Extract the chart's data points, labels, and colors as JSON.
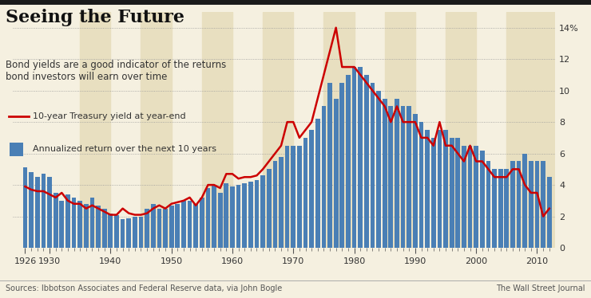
{
  "title": "Seeing the Future",
  "subtitle": "Bond yields are a good indicator of the returns\nbond investors will earn over time",
  "source": "Sources: Ibbotson Associates and Federal Reserve data, via John Bogle",
  "source_right": "The Wall Street Journal",
  "legend_line": "10-year Treasury yield at year-end",
  "legend_bar": "Annualized return over the next 10 years",
  "background_color": "#f5f0e0",
  "bar_color": "#4a7fb5",
  "line_color": "#cc0000",
  "shaded_color": "#e8dfc0",
  "ylim": [
    0,
    15
  ],
  "yticks": [
    0,
    2,
    4,
    6,
    8,
    10,
    12,
    14
  ],
  "ytick_labels": [
    "0",
    "2",
    "4",
    "6",
    "8",
    "10",
    "12",
    "14%"
  ],
  "years": [
    1926,
    1927,
    1928,
    1929,
    1930,
    1931,
    1932,
    1933,
    1934,
    1935,
    1936,
    1937,
    1938,
    1939,
    1940,
    1941,
    1942,
    1943,
    1944,
    1945,
    1946,
    1947,
    1948,
    1949,
    1950,
    1951,
    1952,
    1953,
    1954,
    1955,
    1956,
    1957,
    1958,
    1959,
    1960,
    1961,
    1962,
    1963,
    1964,
    1965,
    1966,
    1967,
    1968,
    1969,
    1970,
    1971,
    1972,
    1973,
    1974,
    1975,
    1976,
    1977,
    1978,
    1979,
    1980,
    1981,
    1982,
    1983,
    1984,
    1985,
    1986,
    1987,
    1988,
    1989,
    1990,
    1991,
    1992,
    1993,
    1994,
    1995,
    1996,
    1997,
    1998,
    1999,
    2000,
    2001,
    2002,
    2003,
    2004,
    2005,
    2006,
    2007,
    2008,
    2009,
    2010,
    2011,
    2012
  ],
  "bar_values": [
    5.1,
    4.8,
    4.5,
    4.7,
    4.5,
    3.5,
    3.0,
    3.4,
    3.2,
    3.0,
    2.8,
    3.2,
    2.7,
    2.5,
    2.2,
    2.1,
    1.8,
    1.9,
    2.0,
    2.0,
    2.5,
    2.8,
    2.5,
    2.5,
    2.7,
    2.8,
    3.0,
    3.0,
    2.8,
    3.2,
    3.8,
    4.0,
    3.5,
    4.1,
    3.9,
    4.0,
    4.1,
    4.2,
    4.3,
    4.6,
    5.0,
    5.5,
    5.8,
    6.5,
    6.5,
    6.5,
    7.0,
    7.5,
    8.2,
    9.0,
    10.5,
    9.5,
    10.5,
    11.0,
    11.5,
    11.5,
    11.0,
    10.5,
    10.0,
    9.5,
    9.0,
    9.5,
    9.0,
    9.0,
    8.5,
    8.0,
    7.5,
    7.0,
    7.5,
    7.5,
    7.0,
    7.0,
    6.5,
    6.5,
    6.5,
    6.2,
    5.5,
    5.0,
    5.0,
    5.0,
    5.5,
    5.5,
    6.0,
    5.5,
    5.5,
    5.5,
    4.5
  ],
  "line_values": [
    3.9,
    3.7,
    3.6,
    3.6,
    3.4,
    3.2,
    3.5,
    3.0,
    2.8,
    2.8,
    2.5,
    2.7,
    2.5,
    2.3,
    2.1,
    2.1,
    2.5,
    2.2,
    2.1,
    2.1,
    2.2,
    2.5,
    2.7,
    2.5,
    2.8,
    2.9,
    3.0,
    3.2,
    2.7,
    3.2,
    4.0,
    4.0,
    3.8,
    4.7,
    4.7,
    4.4,
    4.5,
    4.5,
    4.6,
    5.0,
    5.5,
    6.0,
    6.5,
    8.0,
    8.0,
    7.0,
    7.5,
    8.0,
    9.5,
    11.0,
    12.5,
    14.0,
    11.5,
    11.5,
    11.5,
    11.0,
    10.5,
    10.0,
    9.5,
    9.0,
    8.0,
    9.0,
    8.0,
    8.0,
    8.0,
    7.0,
    7.0,
    6.5,
    8.0,
    6.5,
    6.5,
    6.0,
    5.5,
    6.5,
    5.5,
    5.5,
    5.0,
    4.5,
    4.5,
    4.5,
    5.0,
    5.0,
    4.0,
    3.5,
    3.5,
    2.0,
    2.5
  ],
  "shaded_decades_start": [
    1935,
    1945,
    1955,
    1965,
    1975,
    1985,
    1995,
    2005
  ],
  "shaded_decades_end": [
    1940,
    1950,
    1960,
    1970,
    1980,
    1990,
    2000,
    2013
  ]
}
